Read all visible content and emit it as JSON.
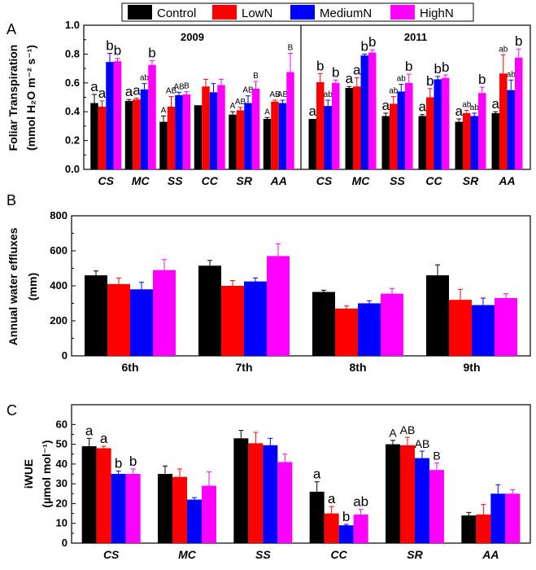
{
  "colors": {
    "Control": "#000000",
    "LowN": "#ff0000",
    "MediumN": "#0000ff",
    "HighN": "#ff00ff"
  },
  "legend": [
    "Control",
    "LowN",
    "MediumN",
    "HighN"
  ],
  "chart_data": [
    {
      "panel": "A",
      "type": "bar",
      "ylabel_line1": "Foliar Transpiration",
      "ylabel_line2": "(mmol H₂O m⁻² s⁻¹)",
      "ylim": [
        0,
        1.0
      ],
      "yticks": [
        "0.0",
        "0.2",
        "0.4",
        "0.6",
        "0.8",
        "1.0"
      ],
      "groups": [
        {
          "title": "2009",
          "categories": [
            "CS",
            "MC",
            "SS",
            "CC",
            "SR",
            "AA"
          ],
          "series": [
            {
              "name": "Control",
              "values": [
                0.46,
                0.475,
                0.33,
                0.445,
                0.38,
                0.35
              ],
              "errors": [
                0.06,
                0.01,
                0.04,
                0.0,
                0.02,
                0.01
              ]
            },
            {
              "name": "LowN",
              "values": [
                0.435,
                0.485,
                0.435,
                0.575,
                0.41,
                0.47
              ],
              "errors": [
                0.04,
                0.01,
                0.07,
                0.05,
                0.02,
                0.01
              ]
            },
            {
              "name": "MediumN",
              "values": [
                0.745,
                0.555,
                0.515,
                0.535,
                0.46,
                0.46
              ],
              "errors": [
                0.06,
                0.04,
                0.02,
                0.06,
                0.05,
                0.02
              ]
            },
            {
              "name": "HighN",
              "values": [
                0.75,
                0.725,
                0.52,
                0.585,
                0.56,
                0.675
              ],
              "errors": [
                0.02,
                0.03,
                0.02,
                0.04,
                0.05,
                0.13
              ]
            }
          ],
          "annotations": [
            [
              "a",
              "a",
              "b",
              "b"
            ],
            [
              "a",
              "a",
              "ab",
              "b"
            ],
            [
              "A",
              "AB",
              "AB",
              "B"
            ],
            [
              "",
              "",
              "",
              ""
            ],
            [
              "A",
              "AB",
              "AB",
              "B"
            ],
            [
              "A",
              "AB",
              "AB",
              "B"
            ]
          ]
        },
        {
          "title": "2011",
          "categories": [
            "CS",
            "MC",
            "SS",
            "CC",
            "SR",
            "AA"
          ],
          "series": [
            {
              "name": "Control",
              "values": [
                0.35,
                0.565,
                0.37,
                0.37,
                0.33,
                0.39
              ],
              "errors": [
                0.0,
                0.01,
                0.02,
                0.01,
                0.02,
                0.01
              ]
            },
            {
              "name": "LowN",
              "values": [
                0.605,
                0.575,
                0.455,
                0.5,
                0.39,
                0.665
              ],
              "errors": [
                0.06,
                0.06,
                0.05,
                0.06,
                0.02,
                0.13
              ]
            },
            {
              "name": "MediumN",
              "values": [
                0.44,
                0.79,
                0.54,
                0.625,
                0.37,
                0.55
              ],
              "errors": [
                0.04,
                0.01,
                0.05,
                0.02,
                0.02,
                0.07
              ]
            },
            {
              "name": "HighN",
              "values": [
                0.6,
                0.81,
                0.6,
                0.635,
                0.53,
                0.775
              ],
              "errors": [
                0.02,
                0.02,
                0.06,
                0.02,
                0.04,
                0.06
              ]
            }
          ],
          "annotations": [
            [
              "a",
              "b",
              "ab",
              "b"
            ],
            [
              "a",
              "a",
              "b",
              "b"
            ],
            [
              "a",
              "ab",
              "ab",
              "b"
            ],
            [
              "a",
              "b",
              "b",
              "b"
            ],
            [
              "a",
              "ab",
              "ab",
              "b"
            ],
            [
              "a",
              "ab",
              "ab",
              "b"
            ]
          ]
        }
      ]
    },
    {
      "panel": "B",
      "type": "bar",
      "ylabel_line1": "Annual water effluxes",
      "ylabel_line2": "(mm)",
      "ylim": [
        0,
        800
      ],
      "yticks": [
        "0",
        "200",
        "400",
        "600",
        "800"
      ],
      "categories": [
        "6th",
        "7th",
        "8th",
        "9th"
      ],
      "series": [
        {
          "name": "Control",
          "values": [
            460,
            515,
            365,
            460
          ],
          "errors": [
            25,
            30,
            10,
            60
          ]
        },
        {
          "name": "LowN",
          "values": [
            410,
            400,
            270,
            320
          ],
          "errors": [
            35,
            30,
            15,
            60
          ]
        },
        {
          "name": "MediumN",
          "values": [
            380,
            425,
            300,
            290
          ],
          "errors": [
            40,
            20,
            15,
            40
          ]
        },
        {
          "name": "HighN",
          "values": [
            490,
            570,
            355,
            330
          ],
          "errors": [
            60,
            70,
            30,
            25
          ]
        }
      ]
    },
    {
      "panel": "C",
      "type": "bar",
      "ylabel_line1": "iWUE",
      "ylabel_line2": "(µmol mol⁻¹)",
      "ylim": [
        0,
        70
      ],
      "yticks": [
        "0",
        "10",
        "20",
        "30",
        "40",
        "50",
        "60"
      ],
      "categories": [
        "CS",
        "MC",
        "SS",
        "CC",
        "SR",
        "AA"
      ],
      "series": [
        {
          "name": "Control",
          "values": [
            49,
            35,
            53,
            26,
            50,
            14
          ],
          "errors": [
            4,
            4,
            4,
            5,
            2,
            1.5
          ]
        },
        {
          "name": "LowN",
          "values": [
            48,
            33.5,
            50.5,
            15,
            49.5,
            14.5
          ],
          "errors": [
            1,
            4,
            5.5,
            3.5,
            4,
            5
          ]
        },
        {
          "name": "MediumN",
          "values": [
            35,
            22,
            49.5,
            9,
            43,
            25
          ],
          "errors": [
            1.5,
            1,
            3.5,
            0.5,
            3.5,
            4.5
          ]
        },
        {
          "name": "HighN",
          "values": [
            35,
            29,
            41,
            14.5,
            37,
            25
          ],
          "errors": [
            2.5,
            7,
            4,
            2.5,
            3.5,
            2
          ]
        }
      ],
      "annotations": [
        [
          "a",
          "a",
          "b",
          "b"
        ],
        [
          "",
          "",
          "",
          ""
        ],
        [
          "",
          "",
          "",
          ""
        ],
        [
          "a",
          "a",
          "b",
          "ab"
        ],
        [
          "A",
          "AB",
          "AB",
          "B"
        ],
        [
          "",
          "",
          "",
          ""
        ]
      ]
    }
  ]
}
